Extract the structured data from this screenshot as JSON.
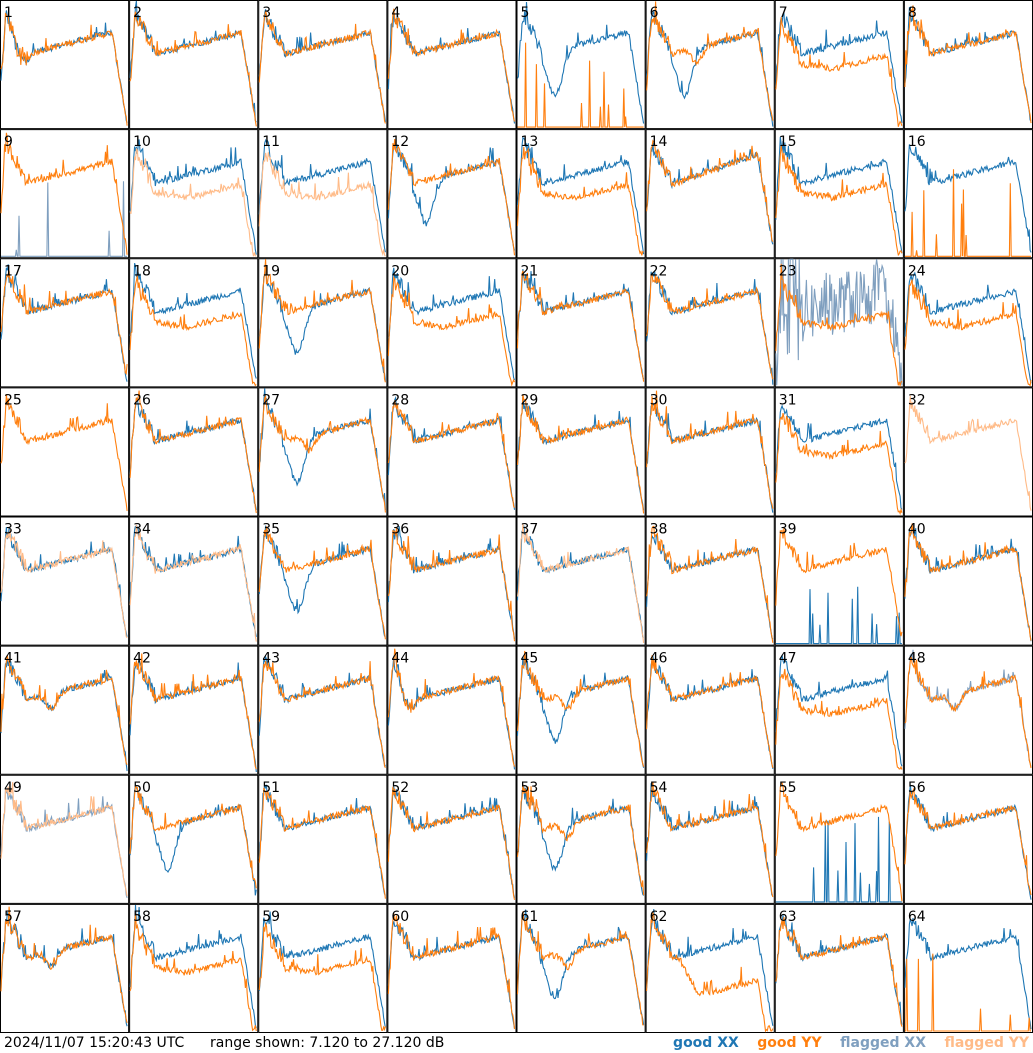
{
  "colors": {
    "good_xx": "#1f77b4",
    "good_yy": "#ff7f0e",
    "flagged_xx": "#7f9fbf",
    "flagged_yy": "#ffbb88"
  },
  "footer": {
    "timestamp": "2024/11/07 15:20:43 UTC",
    "range": "range shown: 7.120 to 27.120 dB"
  },
  "legend": {
    "good_xx": "good XX",
    "good_yy": "good YY",
    "flagged_xx": "flagged XX",
    "flagged_yy": "flagged YY"
  },
  "chart_data": {
    "type": "line",
    "layout": "8x8 grid of small multiples",
    "y_range_db": [
      7.12,
      27.12
    ],
    "grid": false,
    "legend_placement": "bottom-right",
    "series_names": [
      "good XX",
      "good YY",
      "flagged XX",
      "flagged YY"
    ],
    "panels": [
      {
        "id": "1",
        "xx": "good",
        "yy": "good",
        "shape": "droop"
      },
      {
        "id": "2",
        "xx": "good",
        "yy": "good",
        "shape": "typical"
      },
      {
        "id": "3",
        "xx": "good",
        "yy": "good",
        "shape": "typical"
      },
      {
        "id": "4",
        "xx": "good",
        "yy": "good",
        "shape": "typical"
      },
      {
        "id": "5",
        "xx": "good",
        "yy": "dead",
        "shape": "xx-dip"
      },
      {
        "id": "6",
        "xx": "good",
        "yy": "good",
        "shape": "deep-dip"
      },
      {
        "id": "7",
        "xx": "good",
        "yy": "good",
        "shape": "yy-low"
      },
      {
        "id": "8",
        "xx": "good",
        "yy": "good",
        "shape": "typical"
      },
      {
        "id": "9",
        "xx": "flagged",
        "yy": "good",
        "shape": "xx-dead"
      },
      {
        "id": "10",
        "xx": "good",
        "yy": "flagged",
        "shape": "yy-low"
      },
      {
        "id": "11",
        "xx": "good",
        "yy": "flagged",
        "shape": "yy-low"
      },
      {
        "id": "12",
        "xx": "good",
        "yy": "good",
        "shape": "xx-dip"
      },
      {
        "id": "13",
        "xx": "good",
        "yy": "good",
        "shape": "yy-low"
      },
      {
        "id": "14",
        "xx": "good",
        "yy": "good",
        "shape": "rise"
      },
      {
        "id": "15",
        "xx": "good",
        "yy": "good",
        "shape": "yy-low"
      },
      {
        "id": "16",
        "xx": "good",
        "yy": "dead",
        "shape": "typical"
      },
      {
        "id": "17",
        "xx": "good",
        "yy": "good",
        "shape": "typical"
      },
      {
        "id": "18",
        "xx": "good",
        "yy": "good",
        "shape": "yy-low"
      },
      {
        "id": "19",
        "xx": "good",
        "yy": "good",
        "shape": "xx-dip"
      },
      {
        "id": "20",
        "xx": "good",
        "yy": "good",
        "shape": "yy-low"
      },
      {
        "id": "21",
        "xx": "good",
        "yy": "good",
        "shape": "typical"
      },
      {
        "id": "22",
        "xx": "good",
        "yy": "good",
        "shape": "typical"
      },
      {
        "id": "23",
        "xx": "flagged",
        "yy": "good",
        "shape": "xx-noisy"
      },
      {
        "id": "24",
        "xx": "good",
        "yy": "good",
        "shape": "yy-low"
      },
      {
        "id": "25",
        "xx": "none",
        "yy": "good",
        "shape": "typical"
      },
      {
        "id": "26",
        "xx": "good",
        "yy": "good",
        "shape": "typical"
      },
      {
        "id": "27",
        "xx": "good",
        "yy": "good",
        "shape": "deep-dip"
      },
      {
        "id": "28",
        "xx": "good",
        "yy": "good",
        "shape": "typical"
      },
      {
        "id": "29",
        "xx": "good",
        "yy": "good",
        "shape": "typical"
      },
      {
        "id": "30",
        "xx": "good",
        "yy": "good",
        "shape": "typical"
      },
      {
        "id": "31",
        "xx": "good",
        "yy": "good",
        "shape": "yy-low"
      },
      {
        "id": "32",
        "xx": "none",
        "yy": "flagged",
        "shape": "typical"
      },
      {
        "id": "33",
        "xx": "good",
        "yy": "flagged",
        "shape": "typical"
      },
      {
        "id": "34",
        "xx": "good",
        "yy": "flagged-spikes",
        "shape": "typical"
      },
      {
        "id": "35",
        "xx": "good",
        "yy": "good",
        "shape": "xx-dip"
      },
      {
        "id": "36",
        "xx": "good",
        "yy": "good",
        "shape": "typical"
      },
      {
        "id": "37",
        "xx": "good",
        "yy": "flagged",
        "shape": "typical"
      },
      {
        "id": "38",
        "xx": "good",
        "yy": "good",
        "shape": "typical"
      },
      {
        "id": "39",
        "xx": "dead",
        "yy": "good",
        "shape": "typical"
      },
      {
        "id": "40",
        "xx": "good",
        "yy": "good",
        "shape": "typical"
      },
      {
        "id": "41",
        "xx": "good",
        "yy": "good",
        "shape": "dip"
      },
      {
        "id": "42",
        "xx": "good",
        "yy": "good",
        "shape": "typical"
      },
      {
        "id": "43",
        "xx": "good",
        "yy": "good",
        "shape": "typical"
      },
      {
        "id": "44",
        "xx": "good",
        "yy": "good",
        "shape": "droop"
      },
      {
        "id": "45",
        "xx": "good",
        "yy": "good",
        "shape": "deep-dip"
      },
      {
        "id": "46",
        "xx": "good",
        "yy": "good",
        "shape": "typical"
      },
      {
        "id": "47",
        "xx": "good",
        "yy": "good",
        "shape": "yy-low"
      },
      {
        "id": "48",
        "xx": "flagged",
        "yy": "good",
        "shape": "dip"
      },
      {
        "id": "49",
        "xx": "flagged",
        "yy": "flagged",
        "shape": "typical"
      },
      {
        "id": "50",
        "xx": "good",
        "yy": "good",
        "shape": "xx-dip"
      },
      {
        "id": "51",
        "xx": "good",
        "yy": "good",
        "shape": "typical"
      },
      {
        "id": "52",
        "xx": "good",
        "yy": "good",
        "shape": "typical"
      },
      {
        "id": "53",
        "xx": "good",
        "yy": "good",
        "shape": "deep-dip"
      },
      {
        "id": "54",
        "xx": "good",
        "yy": "good",
        "shape": "typical"
      },
      {
        "id": "55",
        "xx": "dead-spikes",
        "yy": "good",
        "shape": "typical"
      },
      {
        "id": "56",
        "xx": "good",
        "yy": "good",
        "shape": "typical"
      },
      {
        "id": "57",
        "xx": "good",
        "yy": "good",
        "shape": "dip"
      },
      {
        "id": "58",
        "xx": "good",
        "yy": "good",
        "shape": "yy-low"
      },
      {
        "id": "59",
        "xx": "good",
        "yy": "good",
        "shape": "yy-low"
      },
      {
        "id": "60",
        "xx": "good",
        "yy": "good",
        "shape": "typical"
      },
      {
        "id": "61",
        "xx": "good",
        "yy": "good",
        "shape": "deep-dip"
      },
      {
        "id": "62",
        "xx": "good",
        "yy": "good",
        "shape": "yy-very-low"
      },
      {
        "id": "63",
        "xx": "good",
        "yy": "good",
        "shape": "typical"
      },
      {
        "id": "64",
        "xx": "good",
        "yy": "dead",
        "shape": "typical"
      }
    ]
  }
}
